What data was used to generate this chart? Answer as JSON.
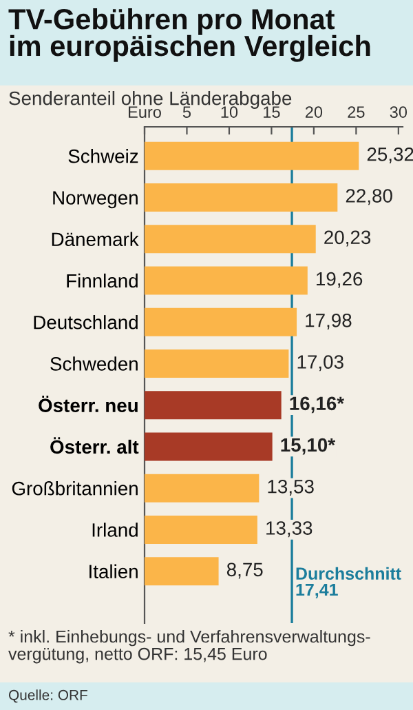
{
  "chart_data": {
    "type": "bar",
    "orientation": "horizontal",
    "title": "TV-Gebühren pro Monat\nim europäischen Vergleich",
    "subtitle": "Senderanteil ohne Länderabgabe",
    "categories": [
      "Schweiz",
      "Norwegen",
      "Dänemark",
      "Finnland",
      "Deutschland",
      "Schweden",
      "Österr. neu",
      "Österr. alt",
      "Großbritannien",
      "Irland",
      "Italien"
    ],
    "values": [
      25.32,
      22.8,
      20.23,
      19.26,
      17.98,
      17.03,
      16.16,
      15.1,
      13.53,
      13.33,
      8.75
    ],
    "value_labels": [
      "25,32",
      "22,80",
      "20,23",
      "19,26",
      "17,98",
      "17,03",
      "16,16*",
      "15,10*",
      "13,53",
      "13,33",
      "8,75"
    ],
    "colors": [
      "#fbb549",
      "#fbb549",
      "#fbb549",
      "#fbb549",
      "#fbb549",
      "#fbb549",
      "#a83a26",
      "#a83a26",
      "#fbb549",
      "#fbb549",
      "#fbb549"
    ],
    "xlim": [
      0,
      30.5
    ],
    "xticks": [
      {
        "value": 0,
        "label": "Euro"
      },
      5,
      10,
      15,
      20,
      25,
      30
    ],
    "ref_lines": [
      {
        "axis": "x",
        "value": 17.41,
        "label": "Durchschnitt\n17,41",
        "color": "#1b7d9c"
      }
    ],
    "annotations": [
      "* inkl. Einhebungs- und Verfahrensverwaltungs-\nvergütung, netto ORF: 15,45 Euro",
      "Quelle: ORF"
    ]
  }
}
